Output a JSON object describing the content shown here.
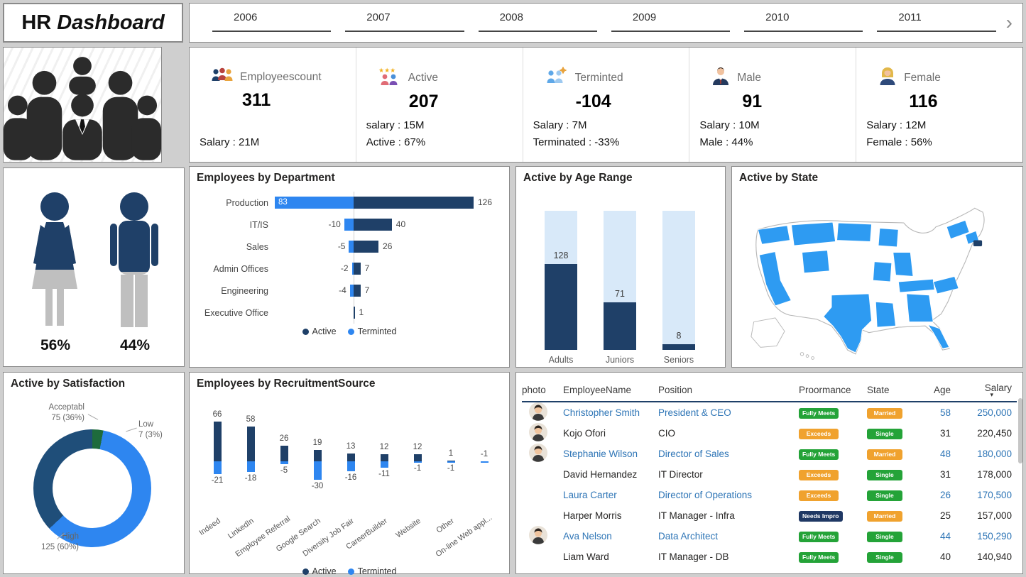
{
  "app_title": {
    "part1": "HR",
    "part2": "Dashboard"
  },
  "year_slicer": {
    "years": [
      "2006",
      "2007",
      "2008",
      "2009",
      "2010",
      "2011"
    ],
    "next": "›"
  },
  "colors": {
    "navy": "#1F4068",
    "blue": "#2E86F0",
    "track": "#D8E9F9",
    "map_blue": "#2E9BF2",
    "link": "#2E75B6",
    "green": "#24A338",
    "orange": "#F0A22E",
    "needs": "#1F3864"
  },
  "kpis": [
    {
      "icon": "employees-icon",
      "label": "Employeescount",
      "value": "311",
      "lines": [
        "Salary : 21M"
      ]
    },
    {
      "icon": "active-icon",
      "label": "Active",
      "value": "207",
      "lines": [
        "salary : 15M",
        "Active : 67%"
      ]
    },
    {
      "icon": "terminated-icon",
      "label": "Terminted",
      "value": "-104",
      "lines": [
        "Salary : 7M",
        "Terminated : -33%"
      ]
    },
    {
      "icon": "male-icon",
      "label": "Male",
      "value": "91",
      "lines": [
        "Salary : 10M",
        "Male : 44%"
      ]
    },
    {
      "icon": "female-icon",
      "label": "Female",
      "value": "116",
      "lines": [
        "Salary : 12M",
        "Female : 56%"
      ]
    }
  ],
  "gender": {
    "female_pct": "56%",
    "male_pct": "44%"
  },
  "chart_data": [
    {
      "id": "department",
      "type": "bar",
      "orientation": "horizontal",
      "title": "Employees by Department",
      "categories": [
        "Production",
        "IT/IS",
        "Sales",
        "Admin Offices",
        "Engineering",
        "Executive Office"
      ],
      "series": [
        {
          "name": "Active",
          "color": "#1F4068",
          "values": [
            126,
            40,
            26,
            7,
            7,
            1
          ]
        },
        {
          "name": "Terminted",
          "color": "#2E86F0",
          "values": [
            -83,
            -10,
            -5,
            -2,
            -4,
            0
          ]
        }
      ],
      "pos_labels": [
        "126",
        "40",
        "26",
        "7",
        "7",
        "1"
      ],
      "neg_labels": [
        "83",
        "-10",
        "-5",
        "-2",
        "-4",
        ""
      ],
      "legend": [
        "Active",
        "Terminted"
      ]
    },
    {
      "id": "age_range",
      "type": "bar",
      "title": "Active by Age Range",
      "categories": [
        "Adults",
        "Juniors",
        "Seniors"
      ],
      "values": [
        128,
        71,
        8
      ],
      "ymax": 207
    },
    {
      "id": "state_map",
      "type": "map",
      "title": "Active by State"
    },
    {
      "id": "satisfaction",
      "type": "pie",
      "title": "Active by Satisfaction",
      "slices": [
        {
          "label": "Low",
          "value": 7,
          "pct": 3,
          "display": "7 (3%)",
          "color": "#1E6B3C"
        },
        {
          "label": "High",
          "value": 125,
          "pct": 60,
          "display": "125 (60%)",
          "color": "#2E86F0"
        },
        {
          "label": "Acceptabl",
          "value": 75,
          "pct": 36,
          "display": "75 (36%)",
          "color": "#1F4E79"
        }
      ]
    },
    {
      "id": "recruitment",
      "type": "bar",
      "title": "Employees by RecruitmentSource",
      "categories": [
        "Indeed",
        "LinkedIn",
        "Employee Referral",
        "Google Search",
        "Diversity Job Fair",
        "CareerBuilder",
        "Website",
        "Other",
        "On-line Web appl..."
      ],
      "series": [
        {
          "name": "Active",
          "color": "#1F4068",
          "values": [
            66,
            58,
            26,
            19,
            13,
            12,
            12,
            1,
            0
          ]
        },
        {
          "name": "Terminted",
          "color": "#2E86F0",
          "values": [
            -21,
            -18,
            -5,
            -30,
            -16,
            -11,
            -1,
            -1,
            -1
          ]
        }
      ],
      "legend": [
        "Active",
        "Terminted"
      ]
    }
  ],
  "table": {
    "columns": [
      "photo",
      "EmployeeName",
      "Position",
      "Proormance",
      "State",
      "Age",
      "Salary"
    ],
    "sort_column": "Salary",
    "sort_icon": "▾",
    "perf_colors": {
      "Fully Meets": "#24A338",
      "Exceeds": "#F0A22E",
      "Needs Impro": "#1F3864"
    },
    "state_colors": {
      "Married": "#F0A22E",
      "Single": "#24A338"
    },
    "rows": [
      {
        "photo": true,
        "name": "Christopher Smith",
        "position": "President & CEO",
        "perf": "Fully Meets",
        "state": "Married",
        "age": "58",
        "salary": "250,000",
        "link": true
      },
      {
        "photo": true,
        "name": "Kojo Ofori",
        "position": "CIO",
        "perf": "Exceeds",
        "state": "Single",
        "age": "31",
        "salary": "220,450",
        "link": false
      },
      {
        "photo": true,
        "name": "Stephanie Wilson",
        "position": "Director of Sales",
        "perf": "Fully Meets",
        "state": "Married",
        "age": "48",
        "salary": "180,000",
        "link": true
      },
      {
        "photo": false,
        "name": "David Hernandez",
        "position": "IT Director",
        "perf": "Exceeds",
        "state": "Single",
        "age": "31",
        "salary": "178,000",
        "link": false
      },
      {
        "photo": false,
        "name": "Laura Carter",
        "position": "Director of Operations",
        "perf": "Exceeds",
        "state": "Single",
        "age": "26",
        "salary": "170,500",
        "link": true
      },
      {
        "photo": false,
        "name": "Harper Morris",
        "position": "IT Manager - Infra",
        "perf": "Needs Impro",
        "state": "Married",
        "age": "25",
        "salary": "157,000",
        "link": false
      },
      {
        "photo": true,
        "name": "Ava Nelson",
        "position": "Data Architect",
        "perf": "Fully Meets",
        "state": "Single",
        "age": "44",
        "salary": "150,290",
        "link": true
      },
      {
        "photo": false,
        "name": "Liam Ward",
        "position": "IT Manager - DB",
        "perf": "Fully Meets",
        "state": "Single",
        "age": "40",
        "salary": "140,940",
        "link": false
      }
    ]
  }
}
